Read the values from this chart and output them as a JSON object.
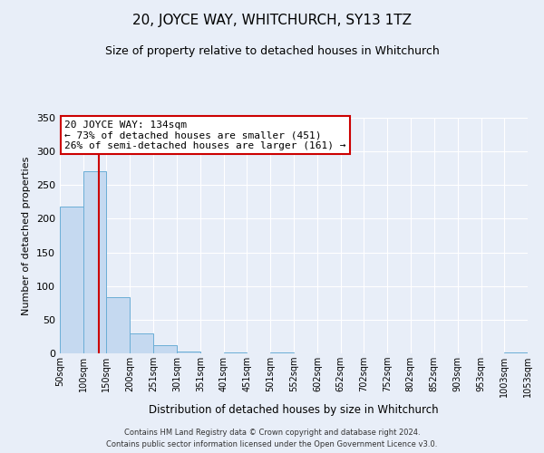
{
  "title": "20, JOYCE WAY, WHITCHURCH, SY13 1TZ",
  "subtitle": "Size of property relative to detached houses in Whitchurch",
  "bar_heights": [
    218,
    271,
    84,
    29,
    12,
    3,
    0,
    2,
    0,
    1,
    0,
    0,
    0,
    0,
    0,
    0,
    0,
    0,
    0,
    2
  ],
  "bin_labels": [
    "50sqm",
    "100sqm",
    "150sqm",
    "200sqm",
    "251sqm",
    "301sqm",
    "351sqm",
    "401sqm",
    "451sqm",
    "501sqm",
    "552sqm",
    "602sqm",
    "652sqm",
    "702sqm",
    "752sqm",
    "802sqm",
    "852sqm",
    "903sqm",
    "953sqm",
    "1003sqm",
    "1053sqm"
  ],
  "xlabel": "Distribution of detached houses by size in Whitchurch",
  "ylabel": "Number of detached properties",
  "ylim": [
    0,
    350
  ],
  "yticks": [
    0,
    50,
    100,
    150,
    200,
    250,
    300,
    350
  ],
  "bar_color": "#c5d9f0",
  "bar_edge_color": "#6baed6",
  "bar_edge_width": 0.7,
  "vline_x": 134,
  "vline_color": "#cc0000",
  "annotation_title": "20 JOYCE WAY: 134sqm",
  "annotation_line1": "← 73% of detached houses are smaller (451)",
  "annotation_line2": "26% of semi-detached houses are larger (161) →",
  "annotation_box_color": "#cc0000",
  "bin_edges": [
    50,
    100,
    150,
    200,
    251,
    301,
    351,
    401,
    451,
    501,
    552,
    602,
    652,
    702,
    752,
    802,
    852,
    903,
    953,
    1003,
    1053
  ],
  "footer_line1": "Contains HM Land Registry data © Crown copyright and database right 2024.",
  "footer_line2": "Contains public sector information licensed under the Open Government Licence v3.0.",
  "background_color": "#e8eef8",
  "grid_color": "#ffffff",
  "title_fontsize": 11,
  "subtitle_fontsize": 9,
  "annotation_fontsize": 8,
  "ylabel_fontsize": 8,
  "xlabel_fontsize": 8.5,
  "footer_fontsize": 6,
  "tick_fontsize": 7
}
